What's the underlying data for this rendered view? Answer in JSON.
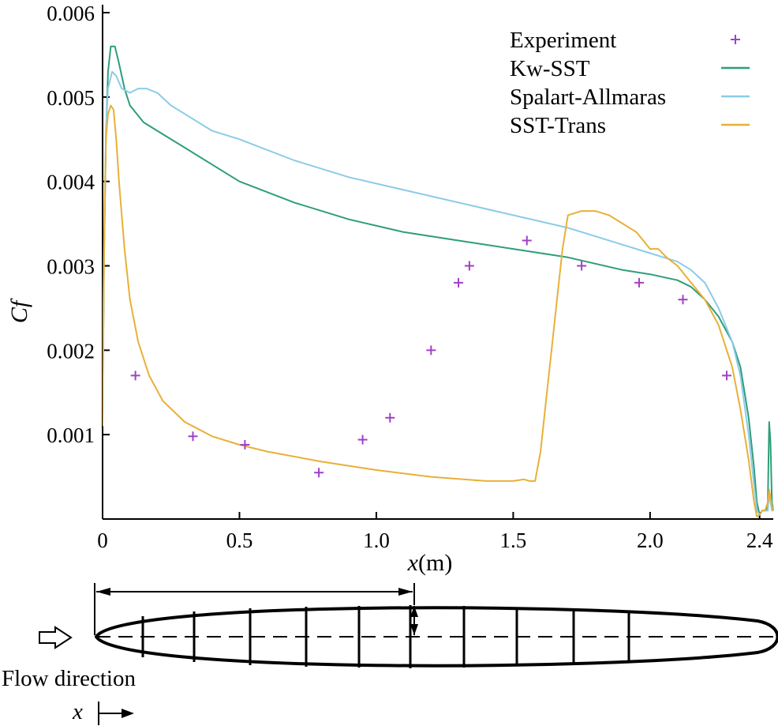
{
  "chart_data": {
    "type": "line",
    "title": "",
    "xlabel_var": "x",
    "xlabel_unit": "(m)",
    "ylabel": "Cf",
    "ylabel_main": "C",
    "ylabel_sub": "f",
    "xlim": [
      0,
      2.45
    ],
    "ylim": [
      0,
      0.006
    ],
    "x_ticks": [
      0,
      0.5,
      1.0,
      1.5,
      2.0,
      2.4
    ],
    "x_tick_labels": [
      "0",
      "0.5",
      "1.0",
      "1.5",
      "2.0",
      "2.4"
    ],
    "y_ticks": [
      0.001,
      0.002,
      0.003,
      0.004,
      0.005,
      0.006
    ],
    "y_tick_labels": [
      "0.001",
      "0.002",
      "0.003",
      "0.004",
      "0.005",
      "0.006"
    ],
    "grid": false,
    "legend_position": "top-right",
    "series": [
      {
        "name": "Experiment",
        "kind": "scatter",
        "marker": "+",
        "color": "#a040c8",
        "x": [
          0.12,
          0.33,
          0.52,
          0.79,
          0.95,
          1.05,
          1.2,
          1.3,
          1.34,
          1.55,
          1.75,
          1.96,
          2.12,
          2.28
        ],
        "y": [
          0.0017,
          0.00098,
          0.00088,
          0.00055,
          0.00094,
          0.0012,
          0.002,
          0.0028,
          0.003,
          0.0033,
          0.003,
          0.0028,
          0.0026,
          0.0017
        ]
      },
      {
        "name": "Kw-SST",
        "kind": "line",
        "color": "#2e9e78",
        "x": [
          0,
          0.005,
          0.012,
          0.02,
          0.03,
          0.045,
          0.06,
          0.08,
          0.1,
          0.15,
          0.2,
          0.3,
          0.4,
          0.5,
          0.7,
          0.9,
          1.1,
          1.3,
          1.5,
          1.7,
          1.9,
          2.0,
          2.1,
          2.15,
          2.2,
          2.25,
          2.3,
          2.33,
          2.36,
          2.38,
          2.39,
          2.4,
          2.41,
          2.42,
          2.425,
          2.43,
          2.435,
          2.44,
          2.445,
          2.45
        ],
        "y": [
          0.0011,
          0.003,
          0.0045,
          0.0053,
          0.0056,
          0.0056,
          0.0054,
          0.0051,
          0.0049,
          0.0047,
          0.0046,
          0.0044,
          0.0042,
          0.004,
          0.00375,
          0.00355,
          0.0034,
          0.0033,
          0.0032,
          0.0031,
          0.00295,
          0.0029,
          0.00283,
          0.00275,
          0.0026,
          0.0024,
          0.0021,
          0.0018,
          0.0012,
          0.0006,
          0.0002,
          5e-05,
          0.0001,
          0.0001,
          0.0001,
          0.0002,
          0.00115,
          0.0009,
          0.0002,
          0.0001
        ]
      },
      {
        "name": "Spalart-Allmaras",
        "kind": "line",
        "color": "#8ccbe8",
        "x": [
          0,
          0.005,
          0.012,
          0.02,
          0.035,
          0.05,
          0.07,
          0.1,
          0.13,
          0.16,
          0.2,
          0.25,
          0.3,
          0.4,
          0.5,
          0.7,
          0.9,
          1.1,
          1.3,
          1.5,
          1.7,
          1.9,
          2.0,
          2.1,
          2.15,
          2.2,
          2.25,
          2.3,
          2.33,
          2.36,
          2.38,
          2.39,
          2.4,
          2.41,
          2.42,
          2.43,
          2.435,
          2.44,
          2.445,
          2.45
        ],
        "y": [
          0.0012,
          0.0032,
          0.0046,
          0.0051,
          0.0053,
          0.00525,
          0.0051,
          0.00505,
          0.0051,
          0.0051,
          0.00505,
          0.0049,
          0.0048,
          0.0046,
          0.0045,
          0.00425,
          0.00405,
          0.0039,
          0.00375,
          0.0036,
          0.00345,
          0.00325,
          0.00315,
          0.00305,
          0.00295,
          0.0028,
          0.0025,
          0.0021,
          0.0017,
          0.001,
          0.0004,
          0.0001,
          5e-05,
          0.0001,
          0.0001,
          0.0001,
          0.0003,
          0.0002,
          0.0001,
          0.0001
        ]
      },
      {
        "name": "SST-Trans",
        "kind": "line",
        "color": "#e8b038",
        "x": [
          0,
          0.005,
          0.012,
          0.02,
          0.03,
          0.04,
          0.05,
          0.06,
          0.08,
          0.1,
          0.13,
          0.17,
          0.22,
          0.3,
          0.4,
          0.5,
          0.6,
          0.8,
          1.0,
          1.2,
          1.4,
          1.5,
          1.54,
          1.56,
          1.58,
          1.6,
          1.62,
          1.64,
          1.66,
          1.68,
          1.7,
          1.75,
          1.8,
          1.85,
          1.9,
          1.95,
          2.0,
          2.03,
          2.06,
          2.1,
          2.15,
          2.2,
          2.25,
          2.3,
          2.33,
          2.36,
          2.38,
          2.39,
          2.4,
          2.41,
          2.42,
          2.43,
          2.435,
          2.44,
          2.445,
          2.45
        ],
        "y": [
          0.0011,
          0.003,
          0.0045,
          0.0048,
          0.0049,
          0.00485,
          0.0045,
          0.004,
          0.0032,
          0.0026,
          0.0021,
          0.0017,
          0.0014,
          0.00115,
          0.00098,
          0.00088,
          0.0008,
          0.00068,
          0.00058,
          0.0005,
          0.00045,
          0.00045,
          0.00047,
          0.00045,
          0.00045,
          0.0008,
          0.0014,
          0.002,
          0.0026,
          0.0032,
          0.0036,
          0.00365,
          0.00365,
          0.0036,
          0.0035,
          0.0034,
          0.0032,
          0.0032,
          0.0031,
          0.003,
          0.0028,
          0.0026,
          0.0023,
          0.0018,
          0.0013,
          0.0007,
          0.0002,
          3e-05,
          5e-05,
          0.0001,
          0.0001,
          0.0002,
          0.00035,
          0.00025,
          0.00015,
          0.0001
        ]
      }
    ]
  },
  "schematic": {
    "flow_label": "Flow direction",
    "x_axis_label": "x"
  }
}
